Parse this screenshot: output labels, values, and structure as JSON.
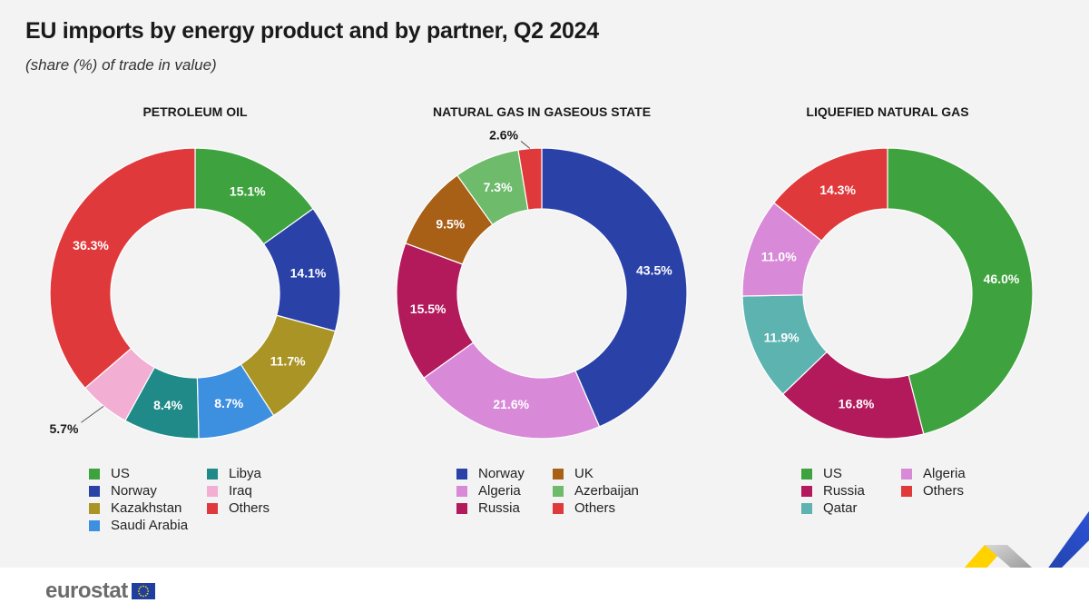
{
  "title": "EU imports by energy product and by partner, Q2 2024",
  "subtitle": "(share (%) of trade in value)",
  "brand": "eurostat",
  "chart_data": [
    {
      "type": "pie",
      "donut": true,
      "title": "PETROLEUM OIL",
      "slices": [
        {
          "name": "US",
          "value": 15.1,
          "label": "15.1%",
          "color": "#3ea33e"
        },
        {
          "name": "Norway",
          "value": 14.1,
          "label": "14.1%",
          "color": "#2a41a8"
        },
        {
          "name": "Kazakhstan",
          "value": 11.7,
          "label": "11.7%",
          "color": "#a99425"
        },
        {
          "name": "Saudi Arabia",
          "value": 8.7,
          "label": "8.7%",
          "color": "#3d8fe0"
        },
        {
          "name": "Libya",
          "value": 8.4,
          "label": "8.4%",
          "color": "#1f8a87"
        },
        {
          "name": "Iraq",
          "value": 5.7,
          "label": "5.7%",
          "color": "#f2aed3"
        },
        {
          "name": "Others",
          "value": 36.3,
          "label": "36.3%",
          "color": "#e0393c"
        }
      ],
      "legend": [
        "US",
        "Norway",
        "Kazakhstan",
        "Saudi Arabia",
        "Libya",
        "Iraq",
        "Others"
      ]
    },
    {
      "type": "pie",
      "donut": true,
      "title": "NATURAL GAS IN GASEOUS STATE",
      "slices": [
        {
          "name": "Norway",
          "value": 43.5,
          "label": "43.5%",
          "color": "#2a41a8"
        },
        {
          "name": "Algeria",
          "value": 21.6,
          "label": "21.6%",
          "color": "#d88ad9"
        },
        {
          "name": "Russia",
          "value": 15.5,
          "label": "15.5%",
          "color": "#b21a5c"
        },
        {
          "name": "UK",
          "value": 9.5,
          "label": "9.5%",
          "color": "#a85f16"
        },
        {
          "name": "Azerbaijan",
          "value": 7.3,
          "label": "7.3%",
          "color": "#6fbb6c"
        },
        {
          "name": "Others",
          "value": 2.6,
          "label": "2.6%",
          "color": "#e0393c"
        }
      ],
      "legend": [
        "Norway",
        "Algeria",
        "Russia",
        "UK",
        "Azerbaijan",
        "Others"
      ]
    },
    {
      "type": "pie",
      "donut": true,
      "title": "LIQUEFIED NATURAL GAS",
      "slices": [
        {
          "name": "US",
          "value": 46.0,
          "label": "46.0%",
          "color": "#3ea33e"
        },
        {
          "name": "Russia",
          "value": 16.8,
          "label": "16.8%",
          "color": "#b21a5c"
        },
        {
          "name": "Qatar",
          "value": 11.9,
          "label": "11.9%",
          "color": "#5cb3b0"
        },
        {
          "name": "Algeria",
          "value": 11.0,
          "label": "11.0%",
          "color": "#d88ad9"
        },
        {
          "name": "Others",
          "value": 14.3,
          "label": "14.3%",
          "color": "#e0393c"
        }
      ],
      "legend": [
        "US",
        "Russia",
        "Qatar",
        "Algeria",
        "Others"
      ]
    }
  ]
}
